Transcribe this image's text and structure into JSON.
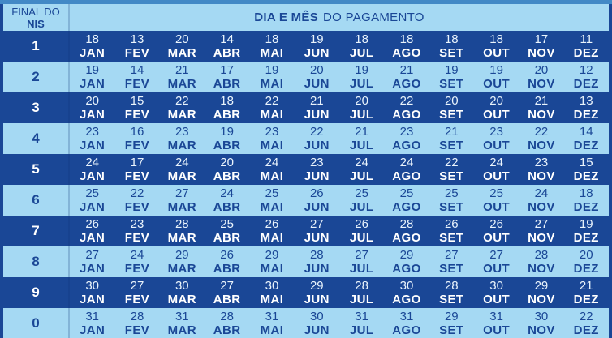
{
  "header": {
    "nis_line1": "FINAL DO",
    "nis_line2": "NIS",
    "title_bold": "DIA E MÊS",
    "title_rest": "DO PAGAMENTO"
  },
  "months": [
    "JAN",
    "FEV",
    "MAR",
    "ABR",
    "MAI",
    "JUN",
    "JUL",
    "AGO",
    "SET",
    "OUT",
    "NOV",
    "DEZ"
  ],
  "rows": [
    {
      "nis": "1",
      "days": [
        18,
        13,
        20,
        14,
        18,
        19,
        18,
        18,
        18,
        18,
        17,
        11
      ]
    },
    {
      "nis": "2",
      "days": [
        19,
        14,
        21,
        17,
        19,
        20,
        19,
        21,
        19,
        19,
        20,
        12
      ]
    },
    {
      "nis": "3",
      "days": [
        20,
        15,
        22,
        18,
        22,
        21,
        20,
        22,
        20,
        20,
        21,
        13
      ]
    },
    {
      "nis": "4",
      "days": [
        23,
        16,
        23,
        19,
        23,
        22,
        21,
        23,
        21,
        23,
        22,
        14
      ]
    },
    {
      "nis": "5",
      "days": [
        24,
        17,
        24,
        20,
        24,
        23,
        24,
        24,
        22,
        24,
        23,
        15
      ]
    },
    {
      "nis": "6",
      "days": [
        25,
        22,
        27,
        24,
        25,
        26,
        25,
        25,
        25,
        25,
        24,
        18
      ]
    },
    {
      "nis": "7",
      "days": [
        26,
        23,
        28,
        25,
        26,
        27,
        26,
        28,
        26,
        26,
        27,
        19
      ]
    },
    {
      "nis": "8",
      "days": [
        27,
        24,
        29,
        26,
        29,
        28,
        27,
        29,
        27,
        27,
        28,
        20
      ]
    },
    {
      "nis": "9",
      "days": [
        30,
        27,
        30,
        27,
        30,
        29,
        28,
        30,
        28,
        30,
        29,
        21
      ]
    },
    {
      "nis": "0",
      "days": [
        31,
        28,
        31,
        28,
        31,
        30,
        31,
        31,
        29,
        31,
        30,
        22
      ]
    }
  ],
  "colors": {
    "dark_row": "#1a4796",
    "light_row": "#a5d9f3",
    "header_bg": "#a5d9f3",
    "top_strip": "#4289c6",
    "dark_text": "#1a4796",
    "light_text": "#ffffff"
  },
  "chart_data": {
    "type": "table",
    "title": "DIA E MÊS DO PAGAMENTO",
    "row_header_label": "FINAL DO NIS",
    "columns": [
      "JAN",
      "FEV",
      "MAR",
      "ABR",
      "MAI",
      "JUN",
      "JUL",
      "AGO",
      "SET",
      "OUT",
      "NOV",
      "DEZ"
    ],
    "row_labels": [
      "1",
      "2",
      "3",
      "4",
      "5",
      "6",
      "7",
      "8",
      "9",
      "0"
    ],
    "values": [
      [
        18,
        13,
        20,
        14,
        18,
        19,
        18,
        18,
        18,
        18,
        17,
        11
      ],
      [
        19,
        14,
        21,
        17,
        19,
        20,
        19,
        21,
        19,
        19,
        20,
        12
      ],
      [
        20,
        15,
        22,
        18,
        22,
        21,
        20,
        22,
        20,
        20,
        21,
        13
      ],
      [
        23,
        16,
        23,
        19,
        23,
        22,
        21,
        23,
        21,
        23,
        22,
        14
      ],
      [
        24,
        17,
        24,
        20,
        24,
        23,
        24,
        24,
        22,
        24,
        23,
        15
      ],
      [
        25,
        22,
        27,
        24,
        25,
        26,
        25,
        25,
        25,
        25,
        24,
        18
      ],
      [
        26,
        23,
        28,
        25,
        26,
        27,
        26,
        28,
        26,
        26,
        27,
        19
      ],
      [
        27,
        24,
        29,
        26,
        29,
        28,
        27,
        29,
        27,
        27,
        28,
        20
      ],
      [
        30,
        27,
        30,
        27,
        30,
        29,
        28,
        30,
        28,
        30,
        29,
        21
      ],
      [
        31,
        28,
        31,
        28,
        31,
        30,
        31,
        31,
        29,
        31,
        30,
        22
      ]
    ]
  }
}
